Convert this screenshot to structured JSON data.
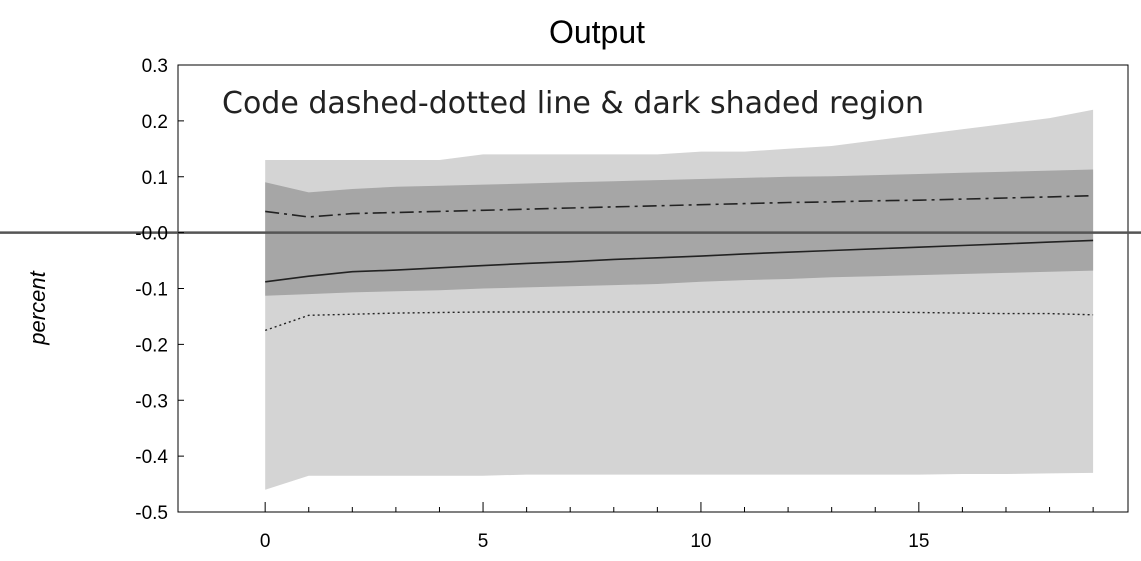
{
  "chart_data": {
    "type": "area",
    "title": "Output",
    "xlabel": "",
    "ylabel": "percent",
    "annotation": "Code dashed-dotted line & dark shaded region",
    "xlim": [
      -2,
      19.8
    ],
    "ylim": [
      -0.5,
      0.3
    ],
    "x_ticks": [
      0,
      5,
      10,
      15
    ],
    "x_tick_labels": [
      "0",
      "5",
      "10",
      "15"
    ],
    "y_ticks": [
      0.3,
      0.2,
      0.1,
      0.0,
      -0.1,
      -0.2,
      -0.3,
      -0.4,
      -0.5
    ],
    "y_tick_labels": [
      "0.3",
      "0.2",
      "0.1",
      "-0.0",
      "-0.1",
      "-0.2",
      "-0.3",
      "-0.4",
      "-0.5"
    ],
    "zero_line": true,
    "grid": false,
    "x": [
      0,
      1,
      2,
      3,
      4,
      5,
      6,
      7,
      8,
      9,
      10,
      11,
      12,
      13,
      14,
      15,
      16,
      17,
      18,
      19
    ],
    "bands": [
      {
        "style": "light",
        "color": "#d4d4d4",
        "upper": [
          0.13,
          0.13,
          0.13,
          0.13,
          0.13,
          0.14,
          0.14,
          0.14,
          0.14,
          0.14,
          0.145,
          0.145,
          0.15,
          0.155,
          0.165,
          0.175,
          0.185,
          0.195,
          0.205,
          0.22
        ],
        "lower": [
          -0.46,
          -0.435,
          -0.435,
          -0.435,
          -0.435,
          -0.435,
          -0.433,
          -0.433,
          -0.433,
          -0.433,
          -0.433,
          -0.433,
          -0.433,
          -0.433,
          -0.433,
          -0.433,
          -0.432,
          -0.432,
          -0.431,
          -0.43
        ]
      },
      {
        "style": "dark",
        "color": "#a6a6a6",
        "upper": [
          0.09,
          0.072,
          0.078,
          0.082,
          0.084,
          0.086,
          0.088,
          0.09,
          0.092,
          0.094,
          0.096,
          0.098,
          0.1,
          0.101,
          0.103,
          0.105,
          0.107,
          0.109,
          0.111,
          0.113
        ],
        "lower": [
          -0.113,
          -0.11,
          -0.107,
          -0.105,
          -0.103,
          -0.1,
          -0.098,
          -0.096,
          -0.094,
          -0.092,
          -0.088,
          -0.085,
          -0.083,
          -0.08,
          -0.078,
          -0.076,
          -0.074,
          -0.072,
          -0.07,
          -0.068
        ]
      }
    ],
    "series": [
      {
        "style": "dash-dot",
        "color": "#222222",
        "values": [
          0.038,
          0.028,
          0.034,
          0.036,
          0.038,
          0.04,
          0.042,
          0.044,
          0.046,
          0.048,
          0.05,
          0.052,
          0.054,
          0.055,
          0.057,
          0.058,
          0.06,
          0.062,
          0.064,
          0.066
        ]
      },
      {
        "style": "solid",
        "color": "#222222",
        "values": [
          -0.088,
          -0.078,
          -0.07,
          -0.067,
          -0.063,
          -0.059,
          -0.055,
          -0.052,
          -0.048,
          -0.045,
          -0.042,
          -0.038,
          -0.035,
          -0.032,
          -0.029,
          -0.026,
          -0.023,
          -0.02,
          -0.017,
          -0.014
        ]
      },
      {
        "style": "dotted",
        "color": "#222222",
        "values": [
          -0.175,
          -0.148,
          -0.146,
          -0.144,
          -0.143,
          -0.142,
          -0.142,
          -0.142,
          -0.142,
          -0.142,
          -0.142,
          -0.142,
          -0.142,
          -0.142,
          -0.142,
          -0.143,
          -0.144,
          -0.145,
          -0.145,
          -0.147
        ]
      }
    ]
  }
}
